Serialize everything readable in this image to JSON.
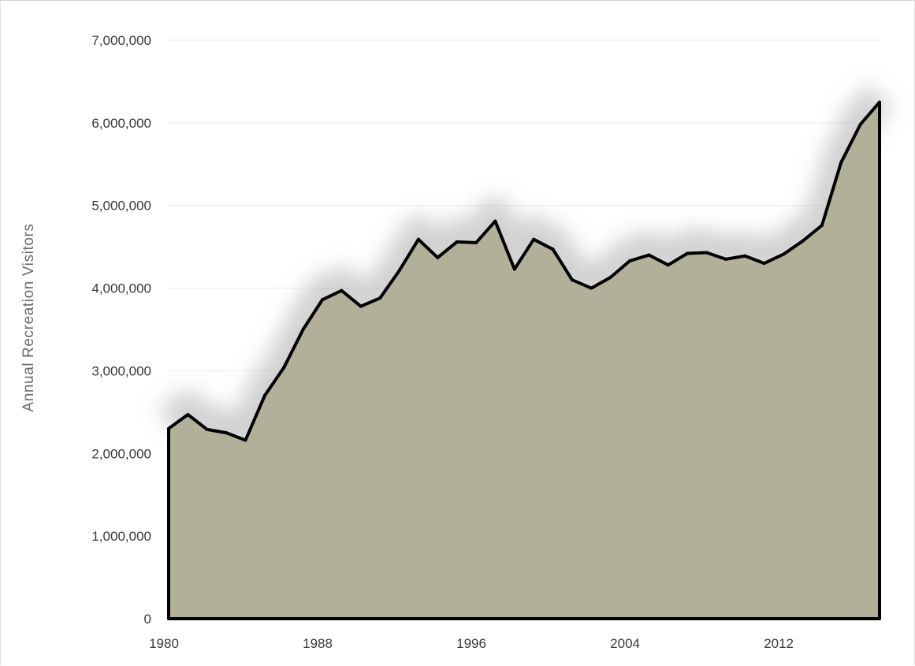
{
  "chart_data": {
    "type": "area",
    "title": "",
    "xlabel": "",
    "ylabel": "Annual Recreation Visitors",
    "xlim": [
      1980,
      2017
    ],
    "ylim": [
      0,
      7000000
    ],
    "x_ticks": [
      1980,
      1988,
      1996,
      2004,
      2012
    ],
    "y_ticks": [
      0,
      1000000,
      2000000,
      3000000,
      4000000,
      5000000,
      6000000,
      7000000
    ],
    "x_tick_labels": [
      "1980",
      "1988",
      "1996",
      "2004",
      "2012"
    ],
    "y_tick_labels": [
      "0",
      "1,000,000",
      "2,000,000",
      "3,000,000",
      "4,000,000",
      "5,000,000",
      "6,000,000",
      "7,000,000"
    ],
    "grid": "horizontal",
    "fill_color": "#b3b09a",
    "line_color": "#000000",
    "series": [
      {
        "x": [
          1980,
          1981,
          1982,
          1983,
          1984,
          1985,
          1986,
          1987,
          1988,
          1989,
          1990,
          1991,
          1992,
          1993,
          1994,
          1995,
          1996,
          1997,
          1998,
          1999,
          2000,
          2001,
          2002,
          2003,
          2004,
          2005,
          2006,
          2007,
          2008,
          2009,
          2010,
          2011,
          2012,
          2013,
          2014,
          2015,
          2016,
          2017
        ],
        "values": [
          2300000,
          2470000,
          2290000,
          2250000,
          2160000,
          2700000,
          3040000,
          3500000,
          3860000,
          3970000,
          3780000,
          3880000,
          4210000,
          4590000,
          4370000,
          4560000,
          4550000,
          4810000,
          4230000,
          4590000,
          4470000,
          4100000,
          4000000,
          4130000,
          4330000,
          4400000,
          4280000,
          4420000,
          4430000,
          4350000,
          4390000,
          4300000,
          4410000,
          4570000,
          4760000,
          5520000,
          5980000,
          6250000
        ]
      }
    ]
  }
}
